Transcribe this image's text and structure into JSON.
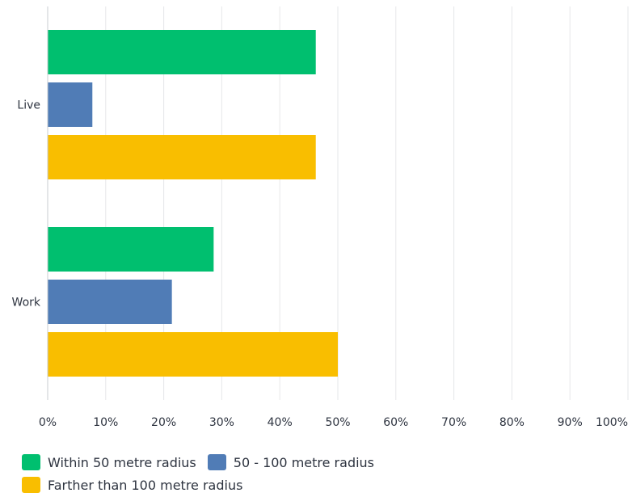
{
  "chart_data": {
    "type": "bar",
    "orientation": "horizontal",
    "categories": [
      "Live",
      "Work"
    ],
    "series": [
      {
        "name": "Within 50 metre radius",
        "color": "#00bf6f",
        "values": [
          46.2,
          28.6
        ]
      },
      {
        "name": "50 - 100 metre radius",
        "color": "#507cb6",
        "values": [
          7.7,
          21.4
        ]
      },
      {
        "name": "Farther than 100 metre radius",
        "color": "#f9be00",
        "values": [
          46.2,
          50.0
        ]
      }
    ],
    "x_ticks": [
      "0%",
      "10%",
      "20%",
      "30%",
      "40%",
      "50%",
      "60%",
      "70%",
      "80%",
      "90%",
      "100%"
    ],
    "xlim": [
      0,
      100
    ],
    "grid": true,
    "legend_position": "bottom"
  }
}
